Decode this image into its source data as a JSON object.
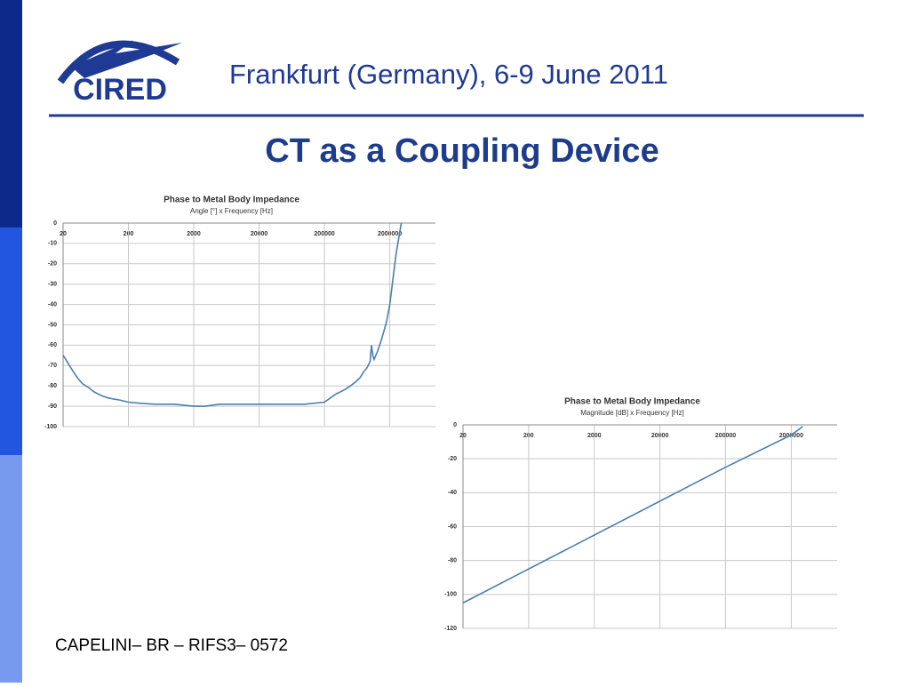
{
  "header": {
    "logo": "CIRED",
    "event": "Frankfurt (Germany), 6-9 June 2011",
    "title": "CT as a Coupling Device"
  },
  "footer": "CAPELINI– BR – RIFS3– 0572",
  "chart_data": [
    {
      "type": "line",
      "title": "Phase to Metal Body Impedance",
      "subtitle": "Angle [°] x Frequency [Hz]",
      "log_x": true,
      "grid": true,
      "xlim": [
        20,
        10000000
      ],
      "xticks": [
        20,
        200,
        2000,
        20000,
        200000,
        2000000
      ],
      "ylim": [
        -100,
        0
      ],
      "yticks": [
        0,
        -10,
        -20,
        -30,
        -40,
        -50,
        -60,
        -70,
        -80,
        -90,
        -100
      ],
      "x": [
        20,
        22,
        25,
        30,
        35,
        40,
        50,
        60,
        80,
        100,
        150,
        200,
        300,
        500,
        1000,
        2000,
        3000,
        5000,
        10000,
        50000,
        100000,
        200000,
        300000,
        400000,
        500000,
        600000,
        700000,
        800000,
        900000,
        1000000,
        1050000,
        1100000,
        1150000,
        1300000,
        1500000,
        1800000,
        2000000,
        2500000,
        3000000
      ],
      "series": [
        {
          "color": "#4a7eb0",
          "values": [
            -65,
            -67,
            -70,
            -74,
            -77,
            -79,
            -81,
            -83,
            -85,
            -86,
            -87,
            -88,
            -88.5,
            -89,
            -89,
            -90,
            -90,
            -89,
            -89,
            -89,
            -89,
            -88,
            -84,
            -82,
            -80,
            -78,
            -76,
            -73,
            -71,
            -68,
            -60,
            -65,
            -67,
            -63,
            -57,
            -48,
            -40,
            -15,
            0
          ]
        }
      ]
    },
    {
      "type": "line",
      "title": "Phase to Metal Body Impedance",
      "subtitle": "Magnitude [dB] x Frequency [Hz]",
      "log_x": true,
      "grid": true,
      "xlim": [
        20,
        10000000
      ],
      "xticks": [
        20,
        200,
        2000,
        20000,
        200000,
        2000000
      ],
      "ylim": [
        -120,
        0
      ],
      "yticks": [
        0,
        -20,
        -40,
        -60,
        -80,
        -100,
        -120
      ],
      "x": [
        20,
        200,
        2000,
        20000,
        200000,
        2000000,
        3000000
      ],
      "series": [
        {
          "color": "#4a7eb0",
          "values": [
            -105,
            -85,
            -65,
            -45,
            -25,
            -6,
            -1
          ]
        }
      ]
    }
  ]
}
